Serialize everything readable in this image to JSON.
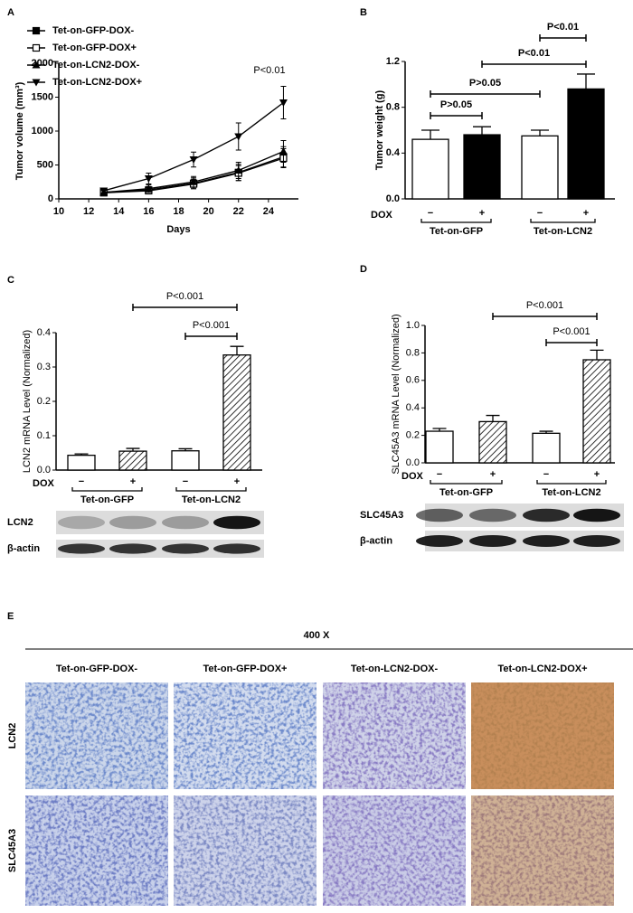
{
  "panels": [
    "A",
    "B",
    "C",
    "D",
    "E"
  ],
  "chart_data": [
    {
      "type": "line",
      "x_label": "Days",
      "y_label": "Tumor volume (mm³)",
      "x": [
        13,
        16,
        19,
        22,
        25
      ],
      "xlim": [
        10,
        26
      ],
      "xticks": [
        10,
        12,
        14,
        16,
        18,
        20,
        22,
        24
      ],
      "ylim": [
        0,
        2000
      ],
      "yticks": [
        0,
        500,
        1000,
        1500,
        2000
      ],
      "series": [
        {
          "name": "Tet-on-GFP-DOX-",
          "color": "#000000",
          "marker": "square-filled",
          "values": [
            100,
            130,
            230,
            390,
            620
          ],
          "errors": [
            30,
            50,
            80,
            120,
            150
          ]
        },
        {
          "name": "Tet-on-GFP-DOX+",
          "color": "#000000",
          "marker": "square-open",
          "values": [
            90,
            120,
            220,
            380,
            600
          ],
          "errors": [
            25,
            45,
            70,
            110,
            140
          ]
        },
        {
          "name": "Tet-on-LCN2-DOX-",
          "color": "#000000",
          "marker": "triangle-up",
          "values": [
            95,
            150,
            250,
            420,
            700
          ],
          "errors": [
            30,
            55,
            80,
            120,
            160
          ]
        },
        {
          "name": "Tet-on-LCN2-DOX+",
          "color": "#000000",
          "marker": "triangle-down",
          "values": [
            120,
            300,
            580,
            920,
            1420
          ],
          "errors": [
            40,
            80,
            110,
            200,
            240
          ]
        }
      ],
      "annotations": [
        "P<0.01"
      ]
    },
    {
      "type": "bar",
      "y_label": "Tumor weight (g)",
      "categories": [
        "−",
        "+",
        "−",
        "+"
      ],
      "values": [
        0.52,
        0.56,
        0.55,
        0.96
      ],
      "errors": [
        0.08,
        0.07,
        0.05,
        0.13
      ],
      "colors": [
        "#ffffff",
        "#000000",
        "#ffffff",
        "#000000"
      ],
      "hatched": [
        false,
        false,
        false,
        false
      ],
      "ylim": [
        0,
        1.2
      ],
      "yticks": [
        {
          "value": 0,
          "label": "0.0"
        },
        0.4,
        0.8,
        1.2
      ],
      "dox_label": "DOX",
      "group_labels": [
        "Tet-on-GFP",
        "Tet-on-LCN2"
      ],
      "annotations": [
        "P<0.01",
        "P<0.01",
        "P>0.05",
        "P>0.05"
      ]
    },
    {
      "type": "bar",
      "y_label": "LCN2 mRNA Level (Normalized)",
      "categories": [
        "−",
        "+",
        "−",
        "+"
      ],
      "values": [
        0.043,
        0.055,
        0.056,
        0.335
      ],
      "errors": [
        0.004,
        0.008,
        0.006,
        0.025
      ],
      "colors": [
        "#ffffff",
        "#ffffff",
        "#ffffff",
        "#ffffff"
      ],
      "hatched": [
        false,
        true,
        false,
        true
      ],
      "ylim": [
        0,
        0.4
      ],
      "yticks": [
        {
          "value": 0,
          "label": "0.0"
        },
        0.1,
        0.2,
        0.3,
        0.4
      ],
      "dox_label": "DOX",
      "group_labels": [
        "Tet-on-GFP",
        "Tet-on-LCN2"
      ],
      "annotations": [
        "P<0.001",
        "P<0.001"
      ]
    },
    {
      "type": "bar",
      "y_label": "SLC45A3 mRNA Level (Normalized)",
      "categories": [
        "−",
        "+",
        "−",
        "+"
      ],
      "values": [
        0.23,
        0.3,
        0.215,
        0.75
      ],
      "errors": [
        0.02,
        0.045,
        0.015,
        0.07
      ],
      "colors": [
        "#ffffff",
        "#ffffff",
        "#ffffff",
        "#ffffff"
      ],
      "hatched": [
        false,
        true,
        false,
        true
      ],
      "ylim": [
        0,
        1.0
      ],
      "yticks": [
        {
          "value": 0,
          "label": "0.0"
        },
        0.2,
        0.4,
        0.6,
        0.8,
        {
          "value": 1,
          "label": "1.0"
        }
      ],
      "dox_label": "DOX",
      "group_labels": [
        "Tet-on-GFP",
        "Tet-on-LCN2"
      ],
      "annotations": [
        "P<0.001",
        "P<0.001"
      ]
    }
  ],
  "blots": {
    "C": [
      "LCN2",
      "β-actin"
    ],
    "D": [
      "SLC45A3",
      "β-actin"
    ]
  },
  "ihc": {
    "magnification": "400 X",
    "columns": [
      "Tet-on-GFP-DOX-",
      "Tet-on-GFP-DOX+",
      "Tet-on-LCN2-DOX-",
      "Tet-on-LCN2-DOX+"
    ],
    "rows": [
      "LCN2",
      "SLC45A3"
    ]
  }
}
